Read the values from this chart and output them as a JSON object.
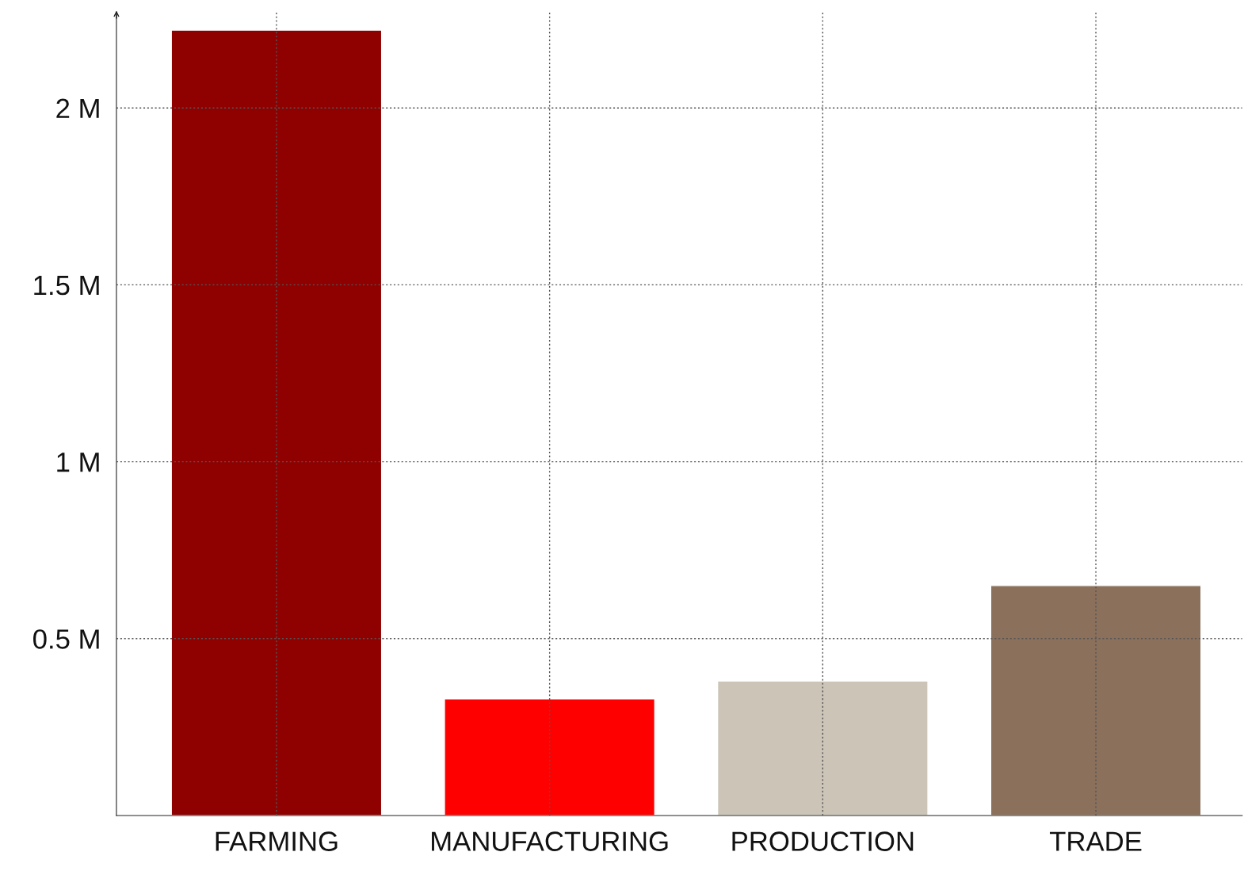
{
  "chart_data": {
    "type": "bar",
    "categories": [
      "FARMING",
      "MANUFACTURING",
      "PRODUCTION",
      "TRADE"
    ],
    "values": [
      2.22,
      0.33,
      0.38,
      0.65
    ],
    "colors": [
      "#8f0000",
      "#ff0000",
      "#cbc4b7",
      "#8b705c"
    ],
    "ylim": [
      0,
      2.27
    ],
    "yticks": [
      {
        "value": 0.5,
        "label": "0.5 M"
      },
      {
        "value": 1,
        "label": "1 M"
      },
      {
        "value": 1.5,
        "label": "1.5 M"
      },
      {
        "value": 2,
        "label": "2 M"
      }
    ],
    "grid": true
  }
}
